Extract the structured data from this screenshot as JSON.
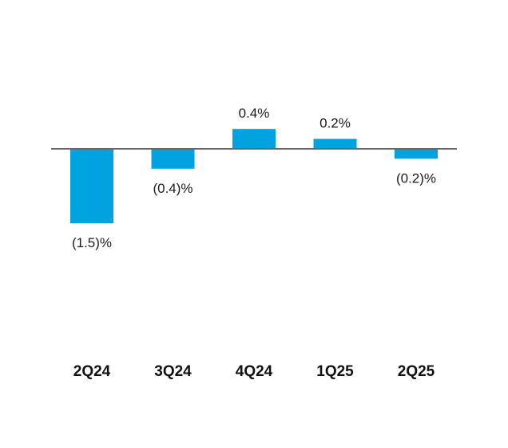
{
  "chart_data": {
    "type": "bar",
    "categories": [
      "2Q24",
      "3Q24",
      "4Q24",
      "1Q25",
      "2Q25"
    ],
    "values": [
      -1.5,
      -0.4,
      0.4,
      0.2,
      -0.2
    ],
    "data_labels": [
      "(1.5)%",
      "(0.4)%",
      "0.4%",
      "0.2%",
      "(0.2)%"
    ],
    "title": "",
    "xlabel": "",
    "ylabel": "",
    "ylim": [
      -1.5,
      0.4
    ],
    "grid": false,
    "legend": "none",
    "bar_color": "#00a3e0",
    "baseline_color": "#666666"
  }
}
